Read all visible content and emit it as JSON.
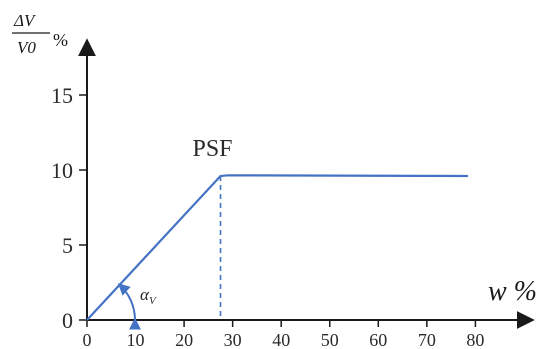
{
  "chart_data": {
    "type": "line",
    "title": "",
    "xlabel": "w %",
    "ylabel_num": "ΔV",
    "ylabel_den": "V0",
    "ylabel_unit": "%",
    "xlim": [
      0,
      88
    ],
    "ylim": [
      0,
      18
    ],
    "xticks": [
      0,
      10,
      20,
      30,
      40,
      50,
      60,
      70,
      80
    ],
    "yticks": [
      0,
      5,
      10,
      15
    ],
    "grid": false,
    "series": [
      {
        "x": [
          0,
          27.5,
          29,
          78.5
        ],
        "y": [
          0,
          9.6,
          9.65,
          9.6
        ]
      }
    ],
    "colors": {
      "line": "#4472c4",
      "axis": "#1a1a1a",
      "text": "#2b2b2b"
    },
    "annotations": {
      "psf_label": "PSF",
      "psf_x": 27.5,
      "angle_label": "α",
      "angle_subscript": "V"
    }
  }
}
